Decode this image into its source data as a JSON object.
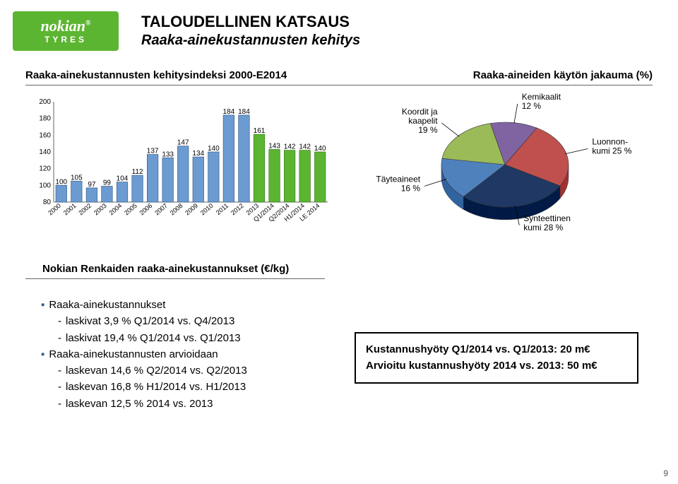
{
  "logo": {
    "brand": "nokian",
    "sub": "TYRES",
    "trademark": "®"
  },
  "titles": {
    "line1": "TALOUDELLINEN KATSAUS",
    "line2": "Raaka-ainekustannusten kehitys"
  },
  "subheads": {
    "left": "Raaka-ainekustannusten kehitysindeksi 2000-E2014",
    "right": "Raaka-aineiden käytön jakauma (%)"
  },
  "bar_chart": {
    "type": "bar",
    "ylim": [
      80,
      200
    ],
    "yticks": [
      80,
      100,
      120,
      140,
      160,
      180,
      200
    ],
    "categories": [
      "2000",
      "2001",
      "2002",
      "2003",
      "2004",
      "2005",
      "2006",
      "2007",
      "2008",
      "2009",
      "2010",
      "2011",
      "2012",
      "2013",
      "Q1/2014",
      "Q2/2014",
      "H1/2014",
      "LE 2014"
    ],
    "values": [
      100,
      105,
      97,
      99,
      104,
      112,
      137,
      133,
      147,
      134,
      140,
      184,
      184,
      161,
      143,
      142,
      142,
      140
    ],
    "bar_color": "#6b9bd1",
    "highlight_color": "#5cb531",
    "highlight_from_index": 13,
    "label_fontsize": 10,
    "axis_color": "#666666",
    "bar_border": "#3a5f8a",
    "highlight_border": "#3d7a20",
    "background": "#ffffff"
  },
  "pie_chart": {
    "type": "pie",
    "slices": [
      {
        "label": "Luonnon-\nkumi 25 %",
        "value": 25,
        "color": "#c0504d"
      },
      {
        "label": "Synteettinen\nkumi 28 %",
        "value": 28,
        "color": "#1f3864"
      },
      {
        "label": "Täyteaineet\n16 %",
        "value": 16,
        "color": "#4f81bd"
      },
      {
        "label": "Koordit ja\nkaapelit\n19 %",
        "value": 19,
        "color": "#9bbb59"
      },
      {
        "label": "Kemikaalit\n12 %",
        "value": 12,
        "color": "#8064a2"
      }
    ],
    "label_fontsize": 12,
    "start_angle_deg": -60
  },
  "lower_head": "Nokian Renkaiden raaka-ainekustannukset (€/kg)",
  "bullets": {
    "b1_title": "Raaka-ainekustannukset",
    "b1_items": [
      "laskivat 3,9 % Q1/2014 vs. Q4/2013",
      "laskivat 19,4 % Q1/2014 vs. Q1/2013"
    ],
    "b2_title": "Raaka-ainekustannusten arvioidaan",
    "b2_items": [
      "laskevan 14,6 % Q2/2014 vs. Q2/2013",
      "laskevan 16,8 % H1/2014 vs. H1/2013",
      "laskevan 12,5 % 2014 vs. 2013"
    ]
  },
  "benefit_box": {
    "line1": "Kustannushyöty Q1/2014 vs. Q1/2013: 20 m€",
    "line2": "Arvioitu kustannushyöty 2014 vs. 2013: 50 m€"
  },
  "page_number": "9"
}
